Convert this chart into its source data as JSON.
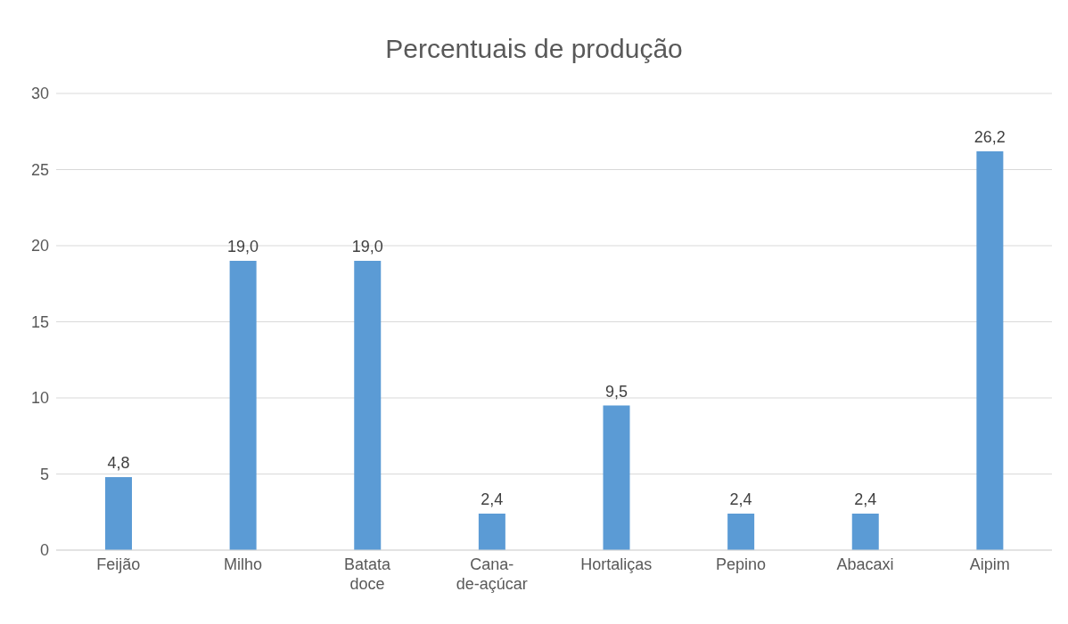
{
  "chart_data": {
    "type": "bar",
    "title": "Percentuais de produção",
    "categories": [
      "Feijão",
      "Milho",
      "Batata doce",
      "Cana-de-açúcar",
      "Hortaliças",
      "Pepino",
      "Abacaxi",
      "Aipim"
    ],
    "values": [
      4.8,
      19.0,
      19.0,
      2.4,
      9.5,
      2.4,
      2.4,
      26.2
    ],
    "value_labels": [
      "4,8",
      "19,0",
      "19,0",
      "2,4",
      "9,5",
      "2,4",
      "2,4",
      "26,2"
    ],
    "color": "#5b9bd5",
    "ylim": [
      0,
      30
    ],
    "yticks": [
      0,
      5,
      10,
      15,
      20,
      25,
      30
    ],
    "grid": "y",
    "legend": false
  }
}
